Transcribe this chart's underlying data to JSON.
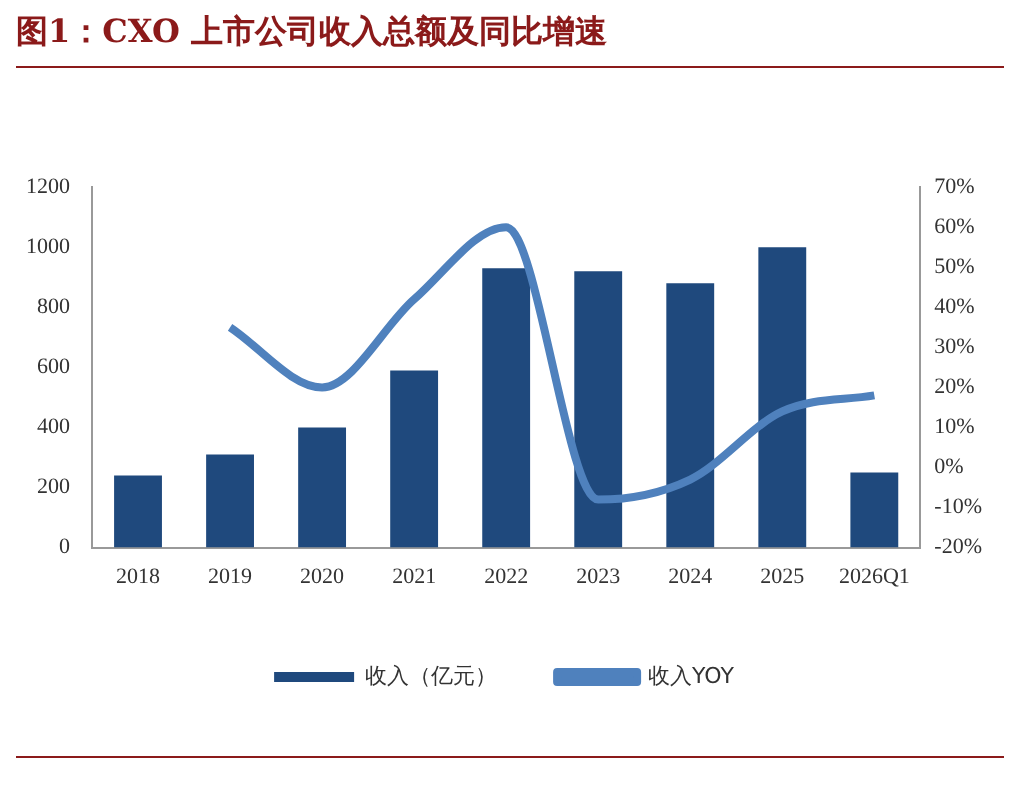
{
  "chart_data": {
    "type": "bar",
    "title": "图1：CXO 上市公司收入总额及同比增速",
    "categories": [
      "2018",
      "2019",
      "2020",
      "2021",
      "2022",
      "2023",
      "2024",
      "2025",
      "2026Q1"
    ],
    "series": [
      {
        "name": "收入（亿元）",
        "color": "#1f497d",
        "values": [
          240,
          310,
          400,
          590,
          930,
          920,
          880,
          1000,
          250
        ]
      },
      {
        "name": "收入YOY",
        "type": "line",
        "axis": "y2",
        "color": "#4f81bd",
        "values": [
          null,
          35,
          20,
          42,
          60,
          -8,
          -3,
          14,
          18
        ]
      }
    ],
    "ylim": [
      0,
      1200
    ],
    "yticks": [
      0,
      200,
      400,
      600,
      800,
      1000,
      1200
    ],
    "y2lim": [
      -20,
      70
    ],
    "y2ticks": [
      {
        "value": -20,
        "label": "-20%"
      },
      {
        "value": -10,
        "label": "-10%"
      },
      {
        "value": 0,
        "label": "0%"
      },
      {
        "value": 10,
        "label": "10%"
      },
      {
        "value": 20,
        "label": "20%"
      },
      {
        "value": 30,
        "label": "30%"
      },
      {
        "value": 40,
        "label": "40%"
      },
      {
        "value": 50,
        "label": "50%"
      },
      {
        "value": 60,
        "label": "60%"
      },
      {
        "value": 70,
        "label": "70%"
      }
    ],
    "grid": false,
    "legend": "bottom",
    "marker": "none",
    "line_style": "solid"
  }
}
